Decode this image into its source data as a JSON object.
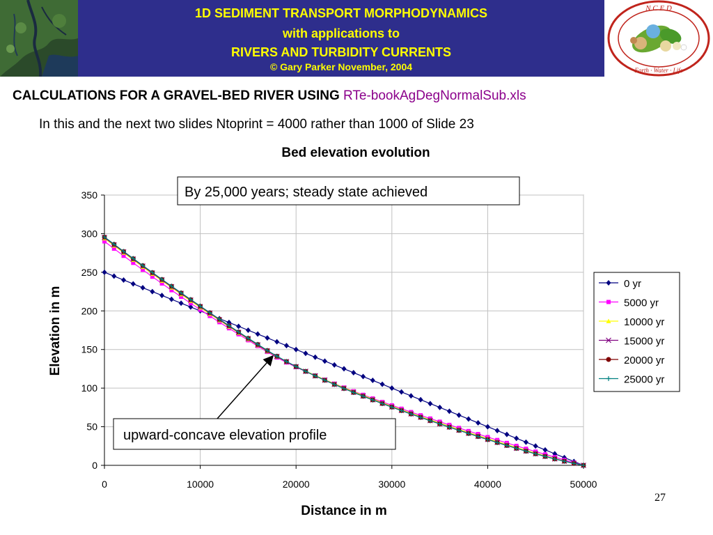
{
  "header": {
    "line1": "1D SEDIMENT TRANSPORT MORPHODYNAMICS",
    "line2": "with applications to",
    "line3": "RIVERS AND TURBIDITY CURRENTS",
    "line4": "© Gary Parker November, 2004",
    "logo_text": "N C E D",
    "logo_ring_text": "Earth · Water · Life",
    "banner_color": "#2e2e8c",
    "banner_text_color": "#ffff00"
  },
  "slide": {
    "title_main": "CALCULATIONS FOR A GRAVEL-BED RIVER USING ",
    "title_file": "RTe-bookAgDegNormalSub.xls",
    "subtitle": "In this and the next two slides Ntoprint = 4000 rather than 1000 of Slide 23",
    "page_number": "27"
  },
  "annotations": {
    "top_box": "By 25,000 years; steady state achieved",
    "bottom_box": "upward-concave elevation profile"
  },
  "chart_data": {
    "type": "line",
    "title": "Bed elevation evolution",
    "xlabel": "Distance in m",
    "ylabel": "Elevation in m",
    "xlim": [
      0,
      50000
    ],
    "ylim": [
      0,
      350
    ],
    "xticks": [
      0,
      10000,
      20000,
      30000,
      40000,
      50000
    ],
    "yticks": [
      0,
      50,
      100,
      150,
      200,
      250,
      300,
      350
    ],
    "grid": true,
    "legend_position": "right",
    "x": [
      0,
      1000,
      2000,
      3000,
      4000,
      5000,
      6000,
      7000,
      8000,
      9000,
      10000,
      11000,
      12000,
      13000,
      14000,
      15000,
      16000,
      17000,
      18000,
      19000,
      20000,
      21000,
      22000,
      23000,
      24000,
      25000,
      26000,
      27000,
      28000,
      29000,
      30000,
      31000,
      32000,
      33000,
      34000,
      35000,
      36000,
      37000,
      38000,
      39000,
      40000,
      41000,
      42000,
      43000,
      44000,
      45000,
      46000,
      47000,
      48000,
      49000,
      50000
    ],
    "series": [
      {
        "name": "0 yr",
        "color": "#000080",
        "marker": "diamond",
        "values": [
          250,
          245,
          240,
          235,
          230,
          225,
          220,
          215,
          210,
          205,
          200,
          195,
          190,
          185,
          180,
          175,
          170,
          165,
          160,
          155,
          150,
          145,
          140,
          135,
          130,
          125,
          120,
          115,
          110,
          105,
          100,
          95,
          90,
          85,
          80,
          75,
          70,
          65,
          60,
          55,
          50,
          45,
          40,
          35,
          30,
          25,
          20,
          15,
          10,
          5,
          0
        ]
      },
      {
        "name": "5000 yr",
        "color": "#ff00ff",
        "marker": "square",
        "values": [
          290,
          280.6,
          271.3,
          262.2,
          253.2,
          244.3,
          235.5,
          226.8,
          218.3,
          209.9,
          201.6,
          193.4,
          185.4,
          177.5,
          169.7,
          162,
          154.4,
          146.9,
          139.6,
          133.2,
          127.2,
          121.6,
          116.2,
          110.9,
          105.8,
          100.8,
          96,
          91.3,
          86.6,
          82.1,
          77.7,
          73.3,
          69,
          64.8,
          60.6,
          56.5,
          52.4,
          48.4,
          44.4,
          40.5,
          36.6,
          32.8,
          29,
          25.2,
          21.5,
          17.8,
          14.2,
          10.6,
          7,
          3.5,
          0
        ]
      },
      {
        "name": "10000 yr",
        "color": "#ffff00",
        "marker": "triangle",
        "values": [
          294,
          284.6,
          275.3,
          266.1,
          257,
          248,
          239.1,
          230.3,
          221.6,
          213,
          204.5,
          196.1,
          187.8,
          179.6,
          171.5,
          163.5,
          155.6,
          147.8,
          140.7,
          134.2,
          128,
          122.1,
          116.4,
          110.9,
          105.6,
          100.5,
          95.5,
          90.6,
          85.8,
          81.1,
          76.5,
          72,
          67.6,
          63.3,
          59,
          54.8,
          50.7,
          46.6,
          42.6,
          38.6,
          34.7,
          30.8,
          27,
          23.2,
          19.5,
          15.8,
          12.2,
          8.8,
          5.6,
          2.6,
          0
        ]
      },
      {
        "name": "15000 yr",
        "color": "#800080",
        "marker": "x",
        "values": [
          295,
          285.6,
          276.3,
          267.1,
          258,
          249,
          240.1,
          231.3,
          222.6,
          214,
          205.5,
          197,
          188.6,
          180.3,
          172.1,
          164,
          156,
          148.2,
          141,
          134.2,
          127.8,
          121.7,
          115.9,
          110.3,
          104.9,
          99.7,
          94.6,
          89.7,
          84.9,
          80.2,
          75.6,
          71.1,
          66.7,
          62.3,
          58,
          53.8,
          49.6,
          45.5,
          41.5,
          37.5,
          33.6,
          29.7,
          25.9,
          22.2,
          18.5,
          15,
          11.6,
          8.4,
          5.4,
          2.6,
          0
        ]
      },
      {
        "name": "20000 yr",
        "color": "#800000",
        "marker": "circle",
        "values": [
          295.5,
          286.1,
          276.8,
          267.6,
          258.5,
          249.5,
          240.6,
          231.8,
          223.1,
          214.5,
          206,
          197.5,
          189.1,
          180.8,
          172.6,
          164.5,
          156.5,
          148.6,
          141.3,
          134.4,
          127.9,
          121.7,
          115.8,
          110.2,
          104.8,
          99.5,
          94.4,
          89.5,
          84.7,
          80,
          75.4,
          70.9,
          66.5,
          62.1,
          57.8,
          53.6,
          49.4,
          45.3,
          41.3,
          37.3,
          33.4,
          29.5,
          25.7,
          22,
          18.4,
          14.9,
          11.5,
          8.3,
          5.3,
          2.5,
          0
        ]
      },
      {
        "name": "25000 yr",
        "color": "#008080",
        "marker": "plus",
        "values": [
          295.8,
          286.4,
          277.1,
          267.9,
          258.8,
          249.8,
          240.9,
          232.1,
          223.4,
          214.8,
          206.2,
          197.7,
          189.3,
          181,
          172.8,
          164.7,
          156.7,
          148.8,
          141.4,
          134.5,
          128,
          121.8,
          115.9,
          110.2,
          104.8,
          99.5,
          94.4,
          89.5,
          84.7,
          80,
          75.4,
          70.9,
          66.5,
          62.1,
          57.8,
          53.6,
          49.4,
          45.3,
          41.3,
          37.3,
          33.4,
          29.5,
          25.7,
          22,
          18.4,
          14.9,
          11.5,
          8.3,
          5.3,
          2.5,
          0
        ]
      }
    ]
  }
}
